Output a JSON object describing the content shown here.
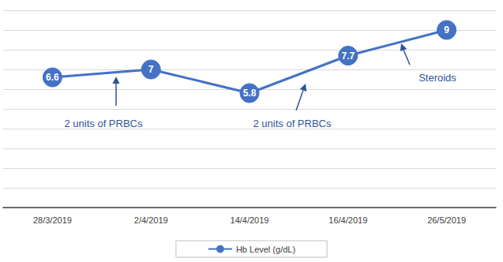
{
  "chart_data": {
    "type": "line",
    "categories": [
      "28/3/2019",
      "2/4/2019",
      "14/4/2019",
      "16/4/2019",
      "26/5/2019"
    ],
    "series": [
      {
        "name": "Hb Level (g/dL)",
        "color": "#4472c4",
        "values": [
          6.6,
          7,
          5.8,
          7.7,
          9
        ]
      }
    ],
    "ylim": [
      0,
      10
    ],
    "yticks": [
      0,
      1,
      2,
      3,
      4,
      5,
      6,
      7,
      8,
      9,
      10
    ],
    "grid": true,
    "legend": "bottom",
    "tick_labels": "x",
    "data_labels": true,
    "marker": "circle",
    "annotations": [
      "2 units of PRBCs",
      "2 units of PRBCs",
      "Steroids"
    ]
  }
}
